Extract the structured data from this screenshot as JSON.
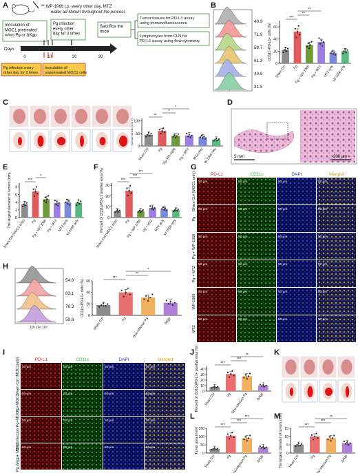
{
  "panelLetters": [
    "A",
    "B",
    "C",
    "D",
    "E",
    "F",
    "G",
    "H",
    "I",
    "J",
    "K",
    "L",
    "M"
  ],
  "panelA": {
    "note_line1": "** WP-1066 i.p. every other day, MTZ",
    "note_line2": "water ad libitum throughout the process",
    "inoculation_box": [
      "Inoculation of",
      "MOC1 pretreated",
      "w/wo Pg or ΔKgp"
    ],
    "pg_box": [
      "Pg infection",
      "every other",
      "day for 3 times"
    ],
    "sacrifice_box": [
      "Sacrifice the",
      "mice"
    ],
    "tumor_tissue_box": [
      "Tumor tissues for PD-L1 assay",
      "using immunofluorescence"
    ],
    "lymphocytes_box": [
      "Lymphocytes from CLN for",
      "PD-L1 assay using flow cytometry"
    ],
    "pg_red_box": [
      "Pg infection every",
      "other day for 3 times"
    ],
    "inoculation_unpretreated": [
      "Inoculation of",
      "unpretreated MOC1 cells"
    ],
    "days_label": "Days",
    "tick_labels": [
      "0",
      "10",
      "20",
      "30"
    ]
  },
  "panelB": {
    "hist_values": [
      "40.9",
      "71.9",
      "58.7",
      "61.3",
      "40.9",
      "31.5"
    ],
    "hist_colors": [
      "#b5b5b5",
      "#f29b9b",
      "#b9d98e",
      "#e7c77a",
      "#a9b4e8",
      "#8ed1a7"
    ],
    "ylabel": "CD11c+PD-L1+ cells (%)",
    "ticks": [
      "0",
      "20",
      "40",
      "60"
    ],
    "sig": [
      "***",
      "**",
      "**"
    ]
  },
  "panelC": {
    "ylabel": "Tumor area (mm²)",
    "ticks": [
      "0",
      "50",
      "100"
    ],
    "sig": [
      "**",
      "*",
      "*"
    ]
  },
  "panelD": {
    "scale1": "5 mm",
    "scale2": "200 μm"
  },
  "panelE": {
    "ylabel": "The largest diameter of tumors (mm)",
    "ticks": [
      "0",
      "2",
      "4",
      "6",
      "8"
    ],
    "sig": [
      "***",
      "*"
    ]
  },
  "panelF": {
    "ylabel": "Percent of CD11c/PD-L1 positive area (%)",
    "ticks": [
      "0",
      "10",
      "20",
      "30"
    ],
    "sig": [
      "***",
      "***",
      "***"
    ]
  },
  "panelG": {
    "headers": [
      "PD-L1",
      "CD11c",
      "DAPI",
      "Merged"
    ],
    "header_colors": [
      "#e02020",
      "#3cb043",
      "#2b3fd6",
      "#d4a017"
    ],
    "row_labels": [
      "Sham Ctrl (MOC1 only)",
      "Pg",
      "Pg + WP-1066",
      "Pg + MTZ",
      "WP-1066",
      "MTZ"
    ],
    "scale": "50 μm"
  },
  "panelH": {
    "hist_values": [
      "54.8",
      "83.1",
      "76.3",
      "59.6"
    ],
    "hist_colors": [
      "#9a9a9a",
      "#f2a6a6",
      "#f4c48e",
      "#c7a3e0"
    ],
    "ylabel": "CD11c+PD-L1+ cells (%)",
    "ticks": [
      "0",
      "20",
      "40",
      "60"
    ],
    "sig": [
      "***",
      "**",
      "*"
    ]
  },
  "panelI": {
    "headers": [
      "PD-L1",
      "CD11c",
      "DAPI",
      "Merged"
    ],
    "row_labels": [
      "Sham Ctrl (MOC1only)",
      "Pg+MOC1",
      "Oral infection Pg+MOC1",
      "Pg ΔKgp+ MOC1"
    ],
    "scale": "50 μm"
  },
  "panelJ": {
    "ylabel": "Percent of CD11c/PD-L1+ positive area (%)",
    "ticks": [
      "0",
      "10",
      "20",
      "30",
      "40"
    ],
    "sig": [
      "***",
      "***",
      "**"
    ]
  },
  "panelL": {
    "ylabel": "Tumor area (mm²)",
    "ticks": [
      "0",
      "50",
      "100",
      "150"
    ],
    "sig": [
      "***",
      "***",
      "***"
    ]
  },
  "panelM": {
    "ylabel": "The largest diameter of tumors (mm)",
    "ticks": [
      "0",
      "5",
      "10",
      "15"
    ],
    "sig": [
      "***",
      "***",
      "**"
    ]
  },
  "chart_data": [
    {
      "type": "bar",
      "panel": "B",
      "categories": [
        "Sham Ctrl",
        "Pg",
        "Pg + WP-1066",
        "Pg + MTZ",
        "MTZ only",
        "W-1066 only"
      ],
      "values": [
        22,
        52,
        30,
        35,
        17,
        20
      ],
      "ylim": [
        0,
        70
      ],
      "colors": [
        "#8c8c8c",
        "#e05c5c",
        "#6f9a3a",
        "#9c7ee0",
        "#7a8ad6",
        "#5ab880"
      ]
    },
    {
      "type": "bar",
      "panel": "C",
      "categories": [
        "Sham Ctrl",
        "Pg",
        "Pg+WP-1066",
        "Pg + MTZ",
        "MTZ only",
        "W-1066 only"
      ],
      "values": [
        45,
        60,
        40,
        42,
        35,
        25
      ],
      "ylim": [
        0,
        110
      ],
      "colors": [
        "#8c8c8c",
        "#e05c5c",
        "#6f9a3a",
        "#9c7ee0",
        "#7a8ad6",
        "#5ab880"
      ]
    },
    {
      "type": "bar",
      "panel": "E",
      "categories": [
        "Sham Ctrl (MOC1 only)",
        "Pg",
        "Pg + WP-1066",
        "Pg + MTZ",
        "MTZ only",
        "W-1066 only"
      ],
      "values": [
        3.5,
        6.8,
        4.8,
        3.8,
        4.0,
        3.9
      ],
      "ylim": [
        0,
        9
      ],
      "colors": [
        "#8c8c8c",
        "#e05c5c",
        "#6f9a3a",
        "#9c7ee0",
        "#7a8ad6",
        "#5ab880"
      ]
    },
    {
      "type": "bar",
      "panel": "F",
      "categories": [
        "Sham Ctrl (MOC1 only)",
        "Pg",
        "Pg + WP-1066",
        "Pg + MTZ",
        "MTZ only",
        "W-1066 only"
      ],
      "values": [
        6,
        25,
        6,
        9,
        8,
        7
      ],
      "ylim": [
        0,
        32
      ],
      "colors": [
        "#8c8c8c",
        "#e05c5c",
        "#6f9a3a",
        "#9c7ee0",
        "#7a8ad6",
        "#5ab880"
      ]
    },
    {
      "type": "bar",
      "panel": "H",
      "categories": [
        "Sham Ctrl",
        "Pg",
        "Oral infection Pg",
        "ΔKgp"
      ],
      "values": [
        18,
        40,
        31,
        22
      ],
      "ylim": [
        0,
        60
      ],
      "colors": [
        "#8c8c8c",
        "#e87070",
        "#f0b060",
        "#b07ed6"
      ]
    },
    {
      "type": "bar",
      "panel": "J",
      "categories": [
        "Sham Ctrl",
        "Pg",
        "Oral infection Pg",
        "ΔKgp"
      ],
      "values": [
        7,
        31,
        27,
        10
      ],
      "ylim": [
        0,
        45
      ],
      "colors": [
        "#8c8c8c",
        "#e87070",
        "#f0b060",
        "#b07ed6"
      ]
    },
    {
      "type": "bar",
      "panel": "L",
      "categories": [
        "Sham Ctrl",
        "Pg",
        "Oral infection Pg",
        "ΔKgp"
      ],
      "values": [
        25,
        105,
        90,
        35
      ],
      "ylim": [
        0,
        150
      ],
      "colors": [
        "#8c8c8c",
        "#e87070",
        "#f0b060",
        "#b07ed6"
      ]
    },
    {
      "type": "bar",
      "panel": "M",
      "categories": [
        "Sham Ctrl",
        "Pg",
        "Oral infection Pg",
        "ΔKgp"
      ],
      "values": [
        5,
        10,
        9,
        6
      ],
      "ylim": [
        0,
        15
      ],
      "colors": [
        "#8c8c8c",
        "#e87070",
        "#f0b060",
        "#b07ed6"
      ]
    }
  ]
}
